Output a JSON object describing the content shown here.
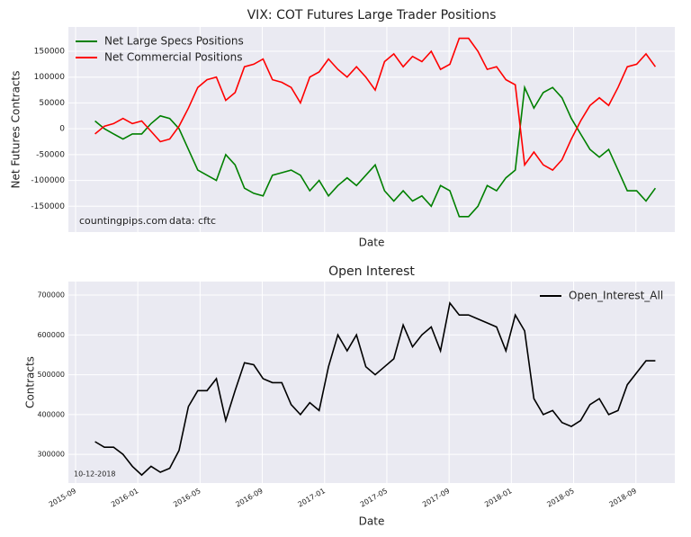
{
  "chart_data": [
    {
      "type": "line",
      "title": "VIX: COT Futures Large Trader Positions",
      "ylabel": "Net Futures Contracts",
      "xlabel": "Date",
      "annotations": [
        "countingpips.com",
        "data: cftc"
      ],
      "legend": "upper left",
      "grid": true,
      "xlim": [
        -0.46,
        38.5
      ],
      "ylim": [
        -200000,
        197000
      ],
      "yticks": [
        -150000,
        -100000,
        -50000,
        0,
        50000,
        100000,
        150000
      ],
      "x": [
        1.25,
        1.85,
        2.45,
        3.05,
        3.65,
        4.25,
        4.85,
        5.45,
        6.05,
        6.65,
        7.25,
        7.85,
        8.45,
        9.05,
        9.65,
        10.25,
        10.85,
        11.45,
        12.05,
        12.65,
        13.25,
        13.85,
        14.45,
        15.05,
        15.65,
        16.25,
        16.85,
        17.45,
        18.05,
        18.65,
        19.25,
        19.85,
        20.45,
        21.05,
        21.65,
        22.25,
        22.85,
        23.45,
        24.05,
        24.65,
        25.25,
        25.85,
        26.45,
        27.05,
        27.65,
        28.25,
        28.85,
        29.45,
        30.05,
        30.65,
        31.25,
        31.85,
        32.45,
        33.05,
        33.65,
        34.25,
        34.85,
        35.45,
        36.05,
        36.65,
        37.25
      ],
      "series": [
        {
          "name": "Net Large Specs Positions",
          "color": "#008000",
          "values": [
            15000,
            0,
            -10000,
            -20000,
            -10000,
            -10000,
            10000,
            25000,
            20000,
            0,
            -40000,
            -80000,
            -90000,
            -100000,
            -50000,
            -70000,
            -115000,
            -125000,
            -130000,
            -90000,
            -85000,
            -80000,
            -90000,
            -120000,
            -100000,
            -130000,
            -110000,
            -95000,
            -110000,
            -90000,
            -70000,
            -120000,
            -140000,
            -120000,
            -140000,
            -130000,
            -150000,
            -110000,
            -120000,
            -170000,
            -170000,
            -150000,
            -110000,
            -120000,
            -95000,
            -80000,
            80000,
            40000,
            70000,
            80000,
            60000,
            20000,
            -10000,
            -40000,
            -55000,
            -40000,
            -80000,
            -120000,
            -120000,
            -140000,
            -115000
          ]
        },
        {
          "name": "Net Commercial Positions",
          "color": "#ff0000",
          "values": [
            -10000,
            5000,
            10000,
            20000,
            10000,
            15000,
            -5000,
            -25000,
            -20000,
            5000,
            40000,
            80000,
            95000,
            100000,
            55000,
            70000,
            120000,
            125000,
            135000,
            95000,
            90000,
            80000,
            50000,
            100000,
            110000,
            135000,
            115000,
            100000,
            120000,
            100000,
            75000,
            130000,
            145000,
            120000,
            140000,
            130000,
            150000,
            115000,
            125000,
            175000,
            175000,
            150000,
            115000,
            120000,
            95000,
            85000,
            -70000,
            -45000,
            -70000,
            -80000,
            -60000,
            -20000,
            15000,
            45000,
            60000,
            45000,
            80000,
            120000,
            125000,
            145000,
            120000
          ]
        }
      ]
    },
    {
      "type": "line",
      "title": "Open Interest",
      "ylabel": "Contracts",
      "xlabel": "Date",
      "annotations": [
        "10-12-2018"
      ],
      "legend": "upper right",
      "grid": true,
      "xlim": [
        -0.46,
        38.5
      ],
      "ylim": [
        228000,
        734000
      ],
      "xticks": [
        {
          "value": 0,
          "label": "2015-09"
        },
        {
          "value": 4,
          "label": "2016-01"
        },
        {
          "value": 8,
          "label": "2016-05"
        },
        {
          "value": 12,
          "label": "2016-09"
        },
        {
          "value": 16,
          "label": "2017-01"
        },
        {
          "value": 20,
          "label": "2017-05"
        },
        {
          "value": 24,
          "label": "2017-09"
        },
        {
          "value": 28,
          "label": "2018-01"
        },
        {
          "value": 32,
          "label": "2018-05"
        },
        {
          "value": 36,
          "label": "2018-09"
        }
      ],
      "yticks": [
        300000,
        400000,
        500000,
        600000,
        700000
      ],
      "x": [
        1.25,
        1.85,
        2.45,
        3.05,
        3.65,
        4.25,
        4.85,
        5.45,
        6.05,
        6.65,
        7.25,
        7.85,
        8.45,
        9.05,
        9.65,
        10.25,
        10.85,
        11.45,
        12.05,
        12.65,
        13.25,
        13.85,
        14.45,
        15.05,
        15.65,
        16.25,
        16.85,
        17.45,
        18.05,
        18.65,
        19.25,
        19.85,
        20.45,
        21.05,
        21.65,
        22.25,
        22.85,
        23.45,
        24.05,
        24.65,
        25.25,
        25.85,
        26.45,
        27.05,
        27.65,
        28.25,
        28.85,
        29.45,
        30.05,
        30.65,
        31.25,
        31.85,
        32.45,
        33.05,
        33.65,
        34.25,
        34.85,
        35.45,
        36.05,
        36.65,
        37.25
      ],
      "series": [
        {
          "name": "Open_Interest_All",
          "color": "#000000",
          "values": [
            332000,
            318000,
            318000,
            300000,
            270000,
            248000,
            270000,
            255000,
            265000,
            310000,
            420000,
            460000,
            460000,
            490000,
            385000,
            460000,
            530000,
            525000,
            490000,
            480000,
            480000,
            425000,
            400000,
            430000,
            410000,
            520000,
            600000,
            560000,
            600000,
            520000,
            500000,
            520000,
            540000,
            625000,
            570000,
            600000,
            620000,
            560000,
            680000,
            650000,
            650000,
            640000,
            630000,
            620000,
            560000,
            650000,
            610000,
            440000,
            400000,
            410000,
            380000,
            370000,
            385000,
            425000,
            440000,
            400000,
            410000,
            475000,
            505000,
            535000,
            535000
          ]
        }
      ]
    }
  ]
}
